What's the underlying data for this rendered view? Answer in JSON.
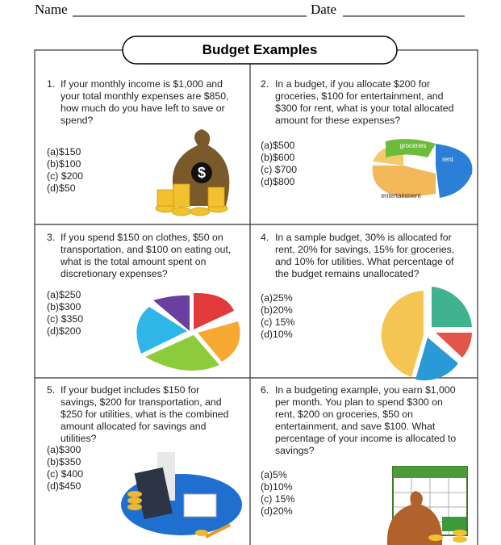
{
  "header": {
    "name_label": "Name",
    "date_label": "Date"
  },
  "title": "Budget Examples",
  "questions": [
    {
      "number": "1.",
      "text": "If your monthly income is $1,000 and your total monthly expenses are $850, how much do you have left to save or spend?",
      "options": [
        "(a)$150",
        "(b)$100",
        "(c) $200",
        "(d)$50"
      ]
    },
    {
      "number": "2.",
      "text": "In a budget, if you allocate $200 for groceries, $100 for entertainment, and $300 for rent, what is your total allocated amount for these expenses?",
      "options": [
        "(a)$500",
        "(b)$600",
        "(c) $700",
        "(d)$800"
      ]
    },
    {
      "number": "3.",
      "text": "If you spend $150 on clothes, $50 on transportation, and $100 on eating out, what is the total amount spent on discretionary expenses?",
      "options": [
        "(a)$250",
        "(b)$300",
        "(c) $350",
        "(d)$200"
      ]
    },
    {
      "number": "4.",
      "text": "In a sample budget, 30% is allocated for rent, 20% for savings, 15% for groceries, and 10% for utilities. What percentage of the budget remains unallocated?",
      "options": [
        "(a)25%",
        "(b)20%",
        "(c) 15%",
        "(d)10%"
      ]
    },
    {
      "number": "5.",
      "text": "If your budget includes $150 for savings, $200 for transportation, and $250 for utilities, what is the combined amount allocated for savings and utilities?",
      "options": [
        "(a)$300",
        "(b)$350",
        "(c) $400",
        "(d)$450"
      ]
    },
    {
      "number": "6.",
      "text": "In a budgeting example, you earn $1,000 per month. You plan to spend $300 on rent, $200 on groceries, $50 on entertainment, and save $100. What percentage of your income is allocated to savings?",
      "options": [
        "(a)5%",
        "(b)10%",
        "(c) 15%",
        "(d)20%"
      ]
    }
  ],
  "illustrations": {
    "money_bag_symbol": "$",
    "pie_labels": [
      "groceries",
      "rent",
      "entertainment"
    ]
  }
}
